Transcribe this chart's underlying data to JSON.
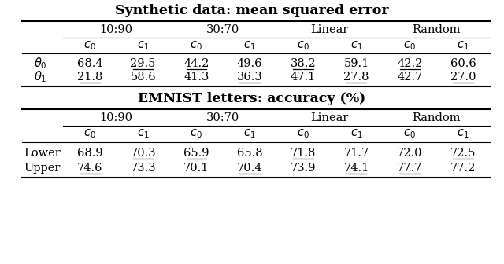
{
  "title1": "Synthetic data: mean squared error",
  "title2": "EMNIST letters: accuracy (%)",
  "table1": {
    "col_groups": [
      "10:90",
      "30:70",
      "Linear",
      "Random"
    ],
    "row_headers": [
      "$\\theta_0$",
      "$\\theta_1$"
    ],
    "data": [
      [
        "68.4",
        "29.5",
        "44.2",
        "49.6",
        "38.2",
        "59.1",
        "42.2",
        "60.6"
      ],
      [
        "21.8",
        "58.6",
        "41.3",
        "36.3",
        "47.1",
        "27.8",
        "42.7",
        "27.0"
      ]
    ],
    "underline": [
      [
        false,
        true,
        true,
        false,
        true,
        false,
        true,
        false
      ],
      [
        true,
        false,
        false,
        true,
        false,
        true,
        false,
        true
      ]
    ]
  },
  "table2": {
    "col_groups": [
      "10:90",
      "30:70",
      "Linear",
      "Random"
    ],
    "row_headers": [
      "Lower",
      "Upper"
    ],
    "data": [
      [
        "68.9",
        "70.3",
        "65.9",
        "65.8",
        "71.8",
        "71.7",
        "72.0",
        "72.5"
      ],
      [
        "74.6",
        "73.3",
        "70.1",
        "70.4",
        "73.9",
        "74.1",
        "77.7",
        "77.2"
      ]
    ],
    "underline": [
      [
        false,
        true,
        true,
        false,
        true,
        false,
        false,
        true
      ],
      [
        true,
        false,
        false,
        true,
        false,
        true,
        true,
        false
      ]
    ]
  }
}
